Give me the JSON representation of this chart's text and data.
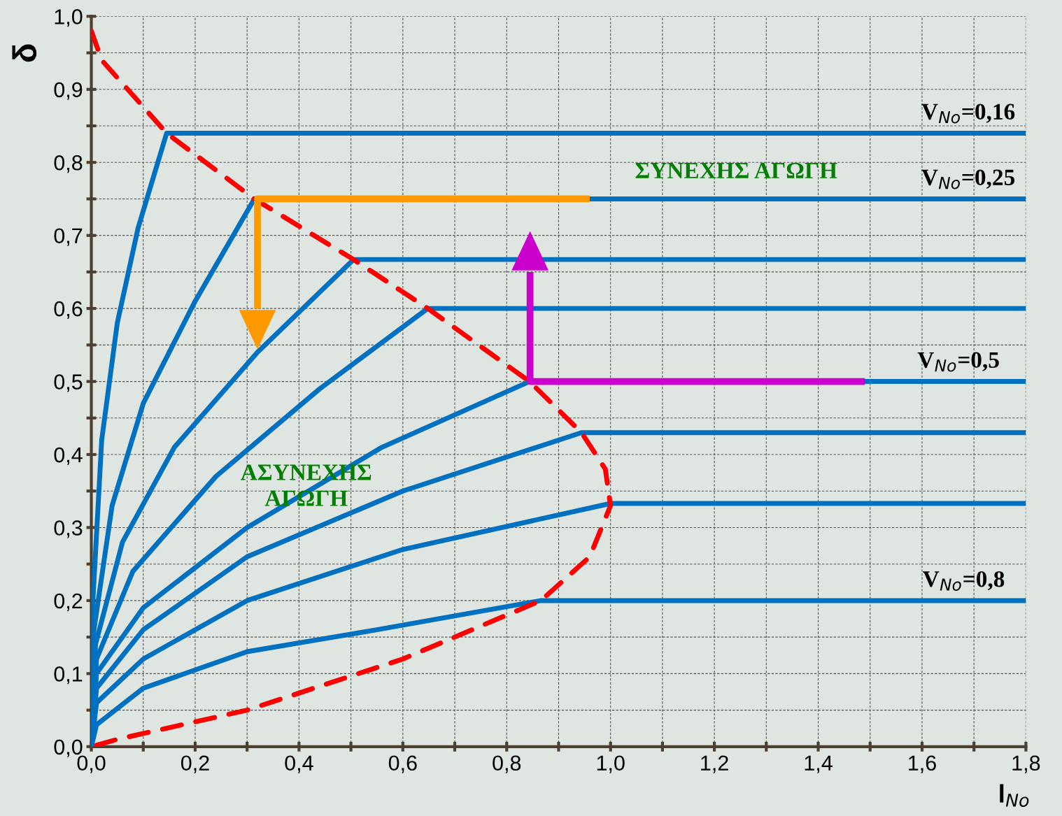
{
  "chart_data": {
    "type": "line",
    "ylabel": "δ",
    "xlabel": "l$_{No}$",
    "xlim": [
      0,
      1.8
    ],
    "ylim": [
      0,
      1.0
    ],
    "xticks": [
      {
        "value": 0,
        "label": "0,0"
      },
      {
        "value": 0.1,
        "label": null
      },
      {
        "value": 0.2,
        "label": "0,2"
      },
      {
        "value": 0.3,
        "label": null
      },
      {
        "value": 0.4,
        "label": "0,4"
      },
      {
        "value": 0.5,
        "label": null
      },
      {
        "value": 0.6,
        "label": "0,6"
      },
      {
        "value": 0.7,
        "label": null
      },
      {
        "value": 0.8,
        "label": "0,8"
      },
      {
        "value": 0.9,
        "label": null
      },
      {
        "value": 1.0,
        "label": "1,0"
      },
      {
        "value": 1.1,
        "label": null
      },
      {
        "value": 1.2,
        "label": "1,2"
      },
      {
        "value": 1.3,
        "label": null
      },
      {
        "value": 1.4,
        "label": "1,4"
      },
      {
        "value": 1.5,
        "label": null
      },
      {
        "value": 1.6,
        "label": "1,6"
      },
      {
        "value": 1.7,
        "label": null
      },
      {
        "value": 1.8,
        "label": "1,8"
      }
    ],
    "yticks": [
      {
        "value": 0,
        "label": "0,0"
      },
      {
        "value": 0.05,
        "label": null
      },
      {
        "value": 0.1,
        "label": "0,1"
      },
      {
        "value": 0.15,
        "label": null
      },
      {
        "value": 0.2,
        "label": "0,2"
      },
      {
        "value": 0.25,
        "label": null
      },
      {
        "value": 0.3,
        "label": "0,3"
      },
      {
        "value": 0.35,
        "label": null
      },
      {
        "value": 0.4,
        "label": "0,4"
      },
      {
        "value": 0.45,
        "label": null
      },
      {
        "value": 0.5,
        "label": "0,5"
      },
      {
        "value": 0.55,
        "label": null
      },
      {
        "value": 0.6,
        "label": "0,6"
      },
      {
        "value": 0.65,
        "label": null
      },
      {
        "value": 0.7,
        "label": "0,7"
      },
      {
        "value": 0.75,
        "label": null
      },
      {
        "value": 0.8,
        "label": "0,8"
      },
      {
        "value": 0.85,
        "label": null
      },
      {
        "value": 0.9,
        "label": "0,9"
      },
      {
        "value": 0.95,
        "label": null
      },
      {
        "value": 1.0,
        "label": "1,0"
      }
    ],
    "grid": true,
    "legend": false,
    "series": [
      {
        "color": "#0070c0",
        "x": [
          0,
          0.003,
          0.02,
          0.05,
          0.09,
          0.145,
          1.8
        ],
        "values": [
          0,
          0.2,
          0.42,
          0.58,
          0.71,
          0.84,
          0.84
        ]
      },
      {
        "color": "#0070c0",
        "x": [
          0,
          0.005,
          0.04,
          0.1,
          0.2,
          0.314,
          1.8
        ],
        "values": [
          0,
          0.16,
          0.33,
          0.47,
          0.61,
          0.75,
          0.75
        ]
      },
      {
        "color": "#0070c0",
        "x": [
          0,
          0.008,
          0.06,
          0.16,
          0.32,
          0.505,
          1.8
        ],
        "values": [
          0,
          0.14,
          0.28,
          0.41,
          0.54,
          0.667,
          0.667
        ]
      },
      {
        "color": "#0070c0",
        "x": [
          0,
          0.01,
          0.08,
          0.24,
          0.44,
          0.648,
          1.8
        ],
        "values": [
          0,
          0.12,
          0.24,
          0.37,
          0.49,
          0.6,
          0.6
        ]
      },
      {
        "color": "#0070c0",
        "x": [
          0,
          0.01,
          0.1,
          0.3,
          0.56,
          0.844,
          1.8
        ],
        "values": [
          0,
          0.1,
          0.19,
          0.3,
          0.41,
          0.5,
          0.5
        ]
      },
      {
        "color": "#0070c0",
        "x": [
          0,
          0.01,
          0.1,
          0.3,
          0.6,
          0.944,
          1.8
        ],
        "values": [
          0,
          0.08,
          0.16,
          0.26,
          0.35,
          0.43,
          0.43
        ]
      },
      {
        "color": "#0070c0",
        "x": [
          0,
          0.01,
          0.1,
          0.3,
          0.6,
          1.0,
          1.8
        ],
        "values": [
          0,
          0.06,
          0.12,
          0.2,
          0.27,
          0.333,
          0.333
        ]
      },
      {
        "color": "#0070c0",
        "x": [
          0,
          0.01,
          0.1,
          0.3,
          0.55,
          0.866,
          1.8
        ],
        "values": [
          0,
          0.03,
          0.08,
          0.13,
          0.16,
          0.2,
          0.2
        ]
      },
      {
        "color": "#ff0000",
        "line_style": "dashed",
        "x": [
          0,
          0.02,
          0.145,
          0.314,
          0.505,
          0.648,
          0.844,
          0.944,
          0.99,
          1.0,
          0.96,
          0.866,
          0.6,
          0.3,
          0.05,
          0
        ],
        "values": [
          0.98,
          0.94,
          0.84,
          0.75,
          0.667,
          0.6,
          0.5,
          0.43,
          0.38,
          0.33,
          0.26,
          0.2,
          0.12,
          0.05,
          0.01,
          0
        ]
      },
      {
        "color": "#ff9900",
        "x": [
          0.96,
          0.32,
          0.32
        ],
        "values": [
          0.75,
          0.75,
          0.6
        ]
      },
      {
        "color": "#cc00cc",
        "x": [
          1.49,
          0.845,
          0.845
        ],
        "values": [
          0.5,
          0.5,
          0.65
        ]
      }
    ],
    "annotations": [
      {
        "text": "V$_{No}$=0,16",
        "x": 1.78,
        "y": 0.84
      },
      {
        "text": "V$_{No}$=0,25",
        "x": 1.78,
        "y": 0.75
      },
      {
        "text": "V$_{No}$=0,5",
        "x": 1.75,
        "y": 0.5
      },
      {
        "text": "V$_{No}$=0,8",
        "x": 1.76,
        "y": 0.2
      },
      "ΣΥΝΕΧΗΣ ΑΓΩΓΗ",
      "ΑΣΥΝΕΧΗΣ\nΑΓΩΓΗ"
    ]
  }
}
